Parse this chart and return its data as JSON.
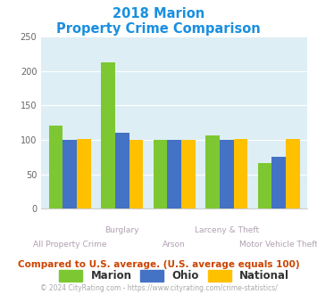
{
  "title_line1": "2018 Marion",
  "title_line2": "Property Crime Comparison",
  "categories": [
    "All Property Crime",
    "Burglary",
    "Arson",
    "Larceny & Theft",
    "Motor Vehicle Theft"
  ],
  "marion": [
    121,
    213,
    100,
    106,
    67
  ],
  "ohio": [
    100,
    110,
    100,
    100,
    75
  ],
  "national": [
    101,
    100,
    100,
    101,
    101
  ],
  "marion_color": "#7dc832",
  "ohio_color": "#4472c4",
  "national_color": "#ffc000",
  "bg_color": "#ddeef5",
  "title_color": "#1a8fe0",
  "xlabel_top_color": "#b0a0b0",
  "xlabel_bottom_color": "#b0a0b0",
  "footer_color": "#aaaaaa",
  "note_color": "#cc4400",
  "ylim": [
    0,
    250
  ],
  "yticks": [
    0,
    50,
    100,
    150,
    200,
    250
  ],
  "top_labels": {
    "1": "Burglary",
    "3": "Larceny & Theft"
  },
  "bottom_labels": {
    "0": "All Property Crime",
    "2": "Arson",
    "4": "Motor Vehicle Theft"
  },
  "footer_text": "© 2024 CityRating.com - https://www.cityrating.com/crime-statistics/",
  "note_text": "Compared to U.S. average. (U.S. average equals 100)"
}
